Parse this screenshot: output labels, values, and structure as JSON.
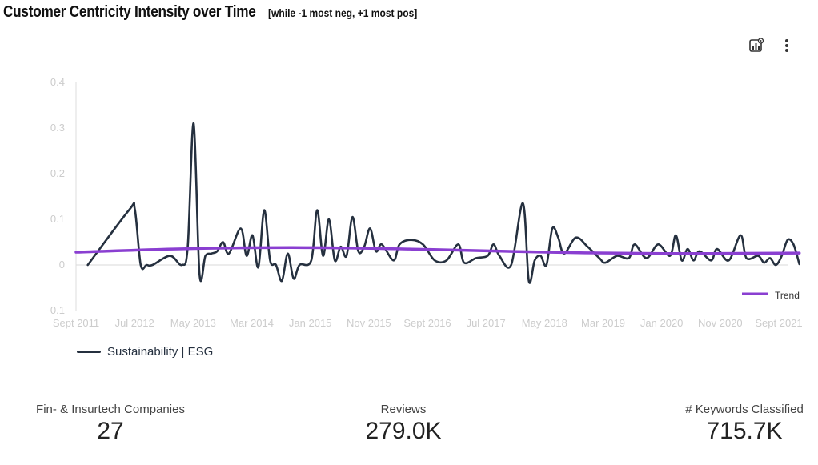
{
  "header": {
    "title": "Customer Centricity Intensity over Time",
    "subtitle": "[while -1 most neg, +1 most pos]"
  },
  "toolbar": {
    "icons": [
      "chart-settings-icon",
      "more-vertical-icon"
    ]
  },
  "chart_data": {
    "type": "line",
    "title": "Customer Centricity Intensity over Time",
    "xlabel": "",
    "ylabel": "",
    "ylim": [
      -0.1,
      0.4
    ],
    "yticks": [
      0.4,
      0.3,
      0.2,
      0.1,
      0,
      -0.1
    ],
    "ytick_labels": [
      "0.4",
      "0.3",
      "0.2",
      "0.1",
      "0",
      "-0.1"
    ],
    "x_tick_labels": [
      "Sept 2011",
      "Jul 2012",
      "May 2013",
      "Mar 2014",
      "Jan 2015",
      "Nov 2015",
      "Sept 2016",
      "Jul 2017",
      "May 2018",
      "Mar 2019",
      "Jan 2020",
      "Nov 2020",
      "Sept 2021"
    ],
    "x_start": "2011-09",
    "x_end": "2021-10",
    "grid": false,
    "series": [
      {
        "name": "Sustainability | ES G",
        "color": "#25303f",
        "values": [
          [
            "2011-11",
            0.0
          ],
          [
            "2012-06",
            0.12
          ],
          [
            "2012-07",
            0.122
          ],
          [
            "2012-08",
            0.0
          ],
          [
            "2012-09",
            0.0
          ],
          [
            "2012-10",
            0.0
          ],
          [
            "2013-01",
            0.02
          ],
          [
            "2013-03",
            0.0
          ],
          [
            "2013-04",
            0.04
          ],
          [
            "2013-05",
            0.31
          ],
          [
            "2013-06",
            -0.02
          ],
          [
            "2013-07",
            0.02
          ],
          [
            "2013-08",
            0.025
          ],
          [
            "2013-09",
            0.03
          ],
          [
            "2013-10",
            0.05
          ],
          [
            "2013-11",
            0.025
          ],
          [
            "2014-01",
            0.08
          ],
          [
            "2014-02",
            0.02
          ],
          [
            "2014-03",
            0.065
          ],
          [
            "2014-04",
            -0.005
          ],
          [
            "2014-05",
            0.12
          ],
          [
            "2014-06",
            0.01
          ],
          [
            "2014-07",
            0.0
          ],
          [
            "2014-08",
            -0.035
          ],
          [
            "2014-09",
            0.025
          ],
          [
            "2014-10",
            -0.03
          ],
          [
            "2014-11",
            0.0
          ],
          [
            "2015-01",
            0.01
          ],
          [
            "2015-02",
            0.12
          ],
          [
            "2015-03",
            0.02
          ],
          [
            "2015-04",
            0.1
          ],
          [
            "2015-05",
            0.01
          ],
          [
            "2015-06",
            0.04
          ],
          [
            "2015-07",
            0.02
          ],
          [
            "2015-08",
            0.105
          ],
          [
            "2015-09",
            0.03
          ],
          [
            "2015-10",
            0.04
          ],
          [
            "2015-11",
            0.08
          ],
          [
            "2015-12",
            0.03
          ],
          [
            "2016-01",
            0.045
          ],
          [
            "2016-03",
            0.01
          ],
          [
            "2016-04",
            0.045
          ],
          [
            "2016-06",
            0.055
          ],
          [
            "2016-08",
            0.045
          ],
          [
            "2016-10",
            0.01
          ],
          [
            "2016-12",
            0.01
          ],
          [
            "2017-02",
            0.045
          ],
          [
            "2017-03",
            0.005
          ],
          [
            "2017-05",
            0.015
          ],
          [
            "2017-07",
            0.02
          ],
          [
            "2017-08",
            0.045
          ],
          [
            "2017-09",
            0.02
          ],
          [
            "2017-11",
            0.0
          ],
          [
            "2018-01",
            0.135
          ],
          [
            "2018-02",
            -0.035
          ],
          [
            "2018-03",
            0.01
          ],
          [
            "2018-04",
            0.02
          ],
          [
            "2018-05",
            0.0
          ],
          [
            "2018-06",
            0.08
          ],
          [
            "2018-07",
            0.06
          ],
          [
            "2018-08",
            0.025
          ],
          [
            "2018-10",
            0.06
          ],
          [
            "2018-12",
            0.04
          ],
          [
            "2019-02",
            0.015
          ],
          [
            "2019-03",
            0.005
          ],
          [
            "2019-05",
            0.02
          ],
          [
            "2019-07",
            0.015
          ],
          [
            "2019-08",
            0.045
          ],
          [
            "2019-10",
            0.015
          ],
          [
            "2019-12",
            0.045
          ],
          [
            "2020-02",
            0.02
          ],
          [
            "2020-03",
            0.065
          ],
          [
            "2020-04",
            0.01
          ],
          [
            "2020-05",
            0.035
          ],
          [
            "2020-06",
            0.01
          ],
          [
            "2020-07",
            0.03
          ],
          [
            "2020-09",
            0.01
          ],
          [
            "2020-10",
            0.035
          ],
          [
            "2020-12",
            0.01
          ],
          [
            "2021-02",
            0.065
          ],
          [
            "2021-03",
            0.015
          ],
          [
            "2021-05",
            0.02
          ],
          [
            "2021-06",
            0.005
          ],
          [
            "2021-07",
            0.015
          ],
          [
            "2021-08",
            0.0
          ],
          [
            "2021-09",
            0.02
          ],
          [
            "2021-10",
            0.055
          ],
          [
            "2021-11",
            0.045
          ],
          [
            "2021-12",
            0.002
          ]
        ]
      },
      {
        "name": "Trend",
        "color": "#8a3fd1",
        "values": [
          [
            "2011-09",
            0.028
          ],
          [
            "2013-05",
            0.036
          ],
          [
            "2015-01",
            0.038
          ],
          [
            "2016-09",
            0.034
          ],
          [
            "2018-05",
            0.028
          ],
          [
            "2020-01",
            0.025
          ],
          [
            "2021-12",
            0.026
          ]
        ]
      }
    ],
    "legend": {
      "entries": [
        "Trend"
      ],
      "placement": "right"
    }
  },
  "series_legend": {
    "label": "Sustainability | ESG"
  },
  "kpis": {
    "companies": {
      "label": "Fin- & Insurtech Companies",
      "value": "27"
    },
    "reviews": {
      "label": "Reviews",
      "value": "279.0K"
    },
    "keywords": {
      "label": "# Keywords Classified",
      "value": "715.7K"
    }
  }
}
